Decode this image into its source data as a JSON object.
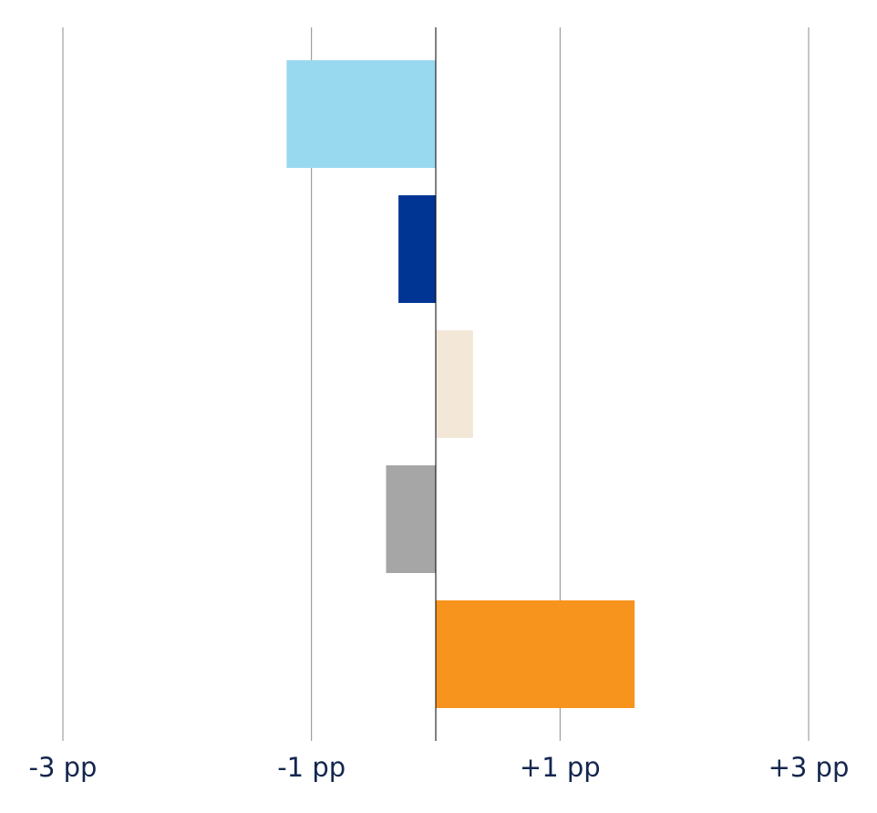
{
  "chart_data": {
    "type": "hbar",
    "categories": [
      null,
      null,
      null,
      null,
      null
    ],
    "values": [
      -1.2,
      -0.3,
      0.3,
      -0.4,
      1.6
    ],
    "colors": [
      "#99d9ef",
      "#003594",
      "#f3e8d8",
      "#a6a6a6",
      "#f7941e"
    ],
    "xlim": [
      -3,
      3
    ],
    "xticks": [
      {
        "value": -3,
        "label": "-3 pp"
      },
      {
        "value": -1,
        "label": "-1 pp"
      },
      {
        "value": 1,
        "label": "+1 pp"
      },
      {
        "value": 3,
        "label": "+3 pp"
      }
    ],
    "grid": true
  }
}
